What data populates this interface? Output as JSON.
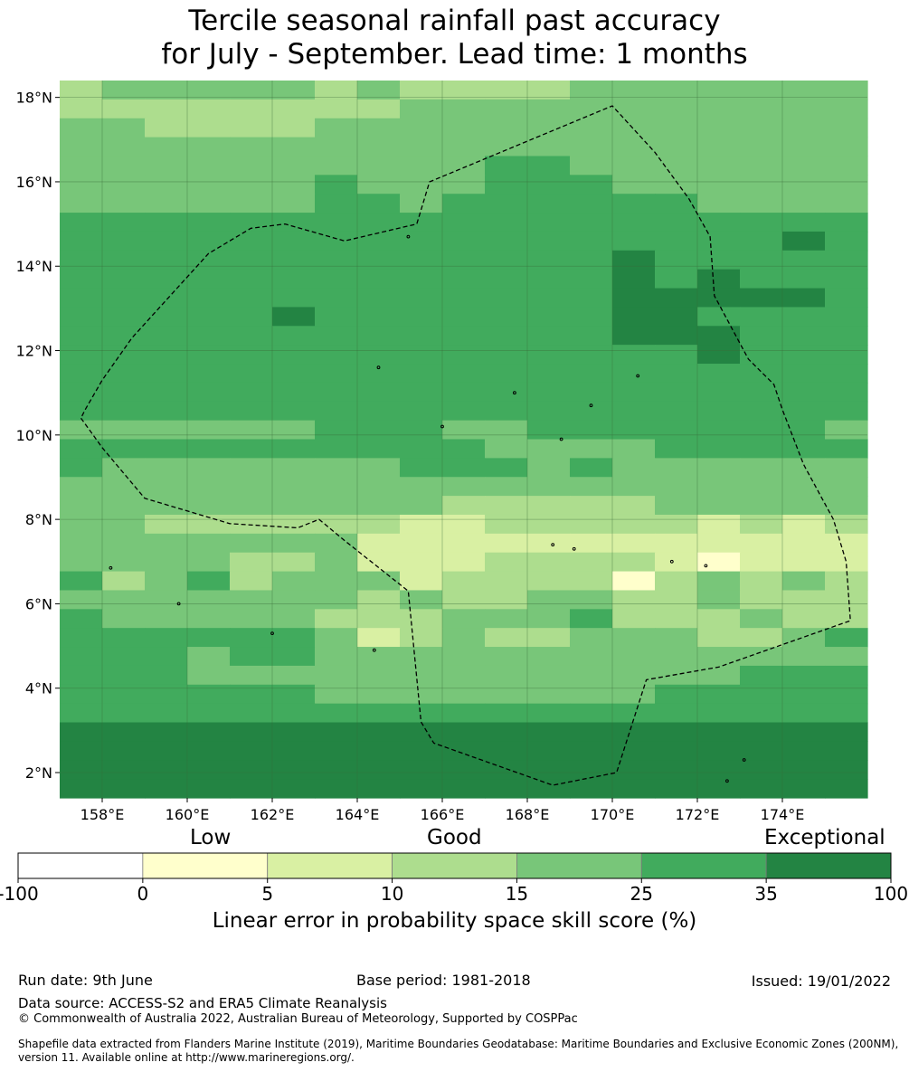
{
  "title_line1": "Tercile seasonal rainfall past accuracy",
  "title_line2": "for July - September. Lead time: 1 months",
  "map": {
    "lon_min": 157.0,
    "lon_max": 176.0,
    "lat_min": 1.4,
    "lat_max": 18.4,
    "lat_ticks": [
      {
        "value": 18,
        "label": "18°N"
      },
      {
        "value": 16,
        "label": "16°N"
      },
      {
        "value": 14,
        "label": "14°N"
      },
      {
        "value": 12,
        "label": "12°N"
      },
      {
        "value": 10,
        "label": "10°N"
      },
      {
        "value": 8,
        "label": "8°N"
      },
      {
        "value": 6,
        "label": "6°N"
      },
      {
        "value": 4,
        "label": "4°N"
      },
      {
        "value": 2,
        "label": "2°N"
      }
    ],
    "lon_ticks": [
      {
        "value": 158,
        "label": "158°E"
      },
      {
        "value": 160,
        "label": "160°E"
      },
      {
        "value": 162,
        "label": "162°E"
      },
      {
        "value": 164,
        "label": "164°E"
      },
      {
        "value": 166,
        "label": "166°E"
      },
      {
        "value": 168,
        "label": "168°E"
      },
      {
        "value": 170,
        "label": "170°E"
      },
      {
        "value": 172,
        "label": "172°E"
      },
      {
        "value": 174,
        "label": "174°E"
      }
    ],
    "grid_lines": true,
    "eez_boundary": [
      [
        157.5,
        10.4
      ],
      [
        158.0,
        9.7
      ],
      [
        159.0,
        8.5
      ],
      [
        161.0,
        7.9
      ],
      [
        162.6,
        7.8
      ],
      [
        163.1,
        8.0
      ],
      [
        163.7,
        7.5
      ],
      [
        165.2,
        6.3
      ],
      [
        165.5,
        3.2
      ],
      [
        165.8,
        2.7
      ],
      [
        168.6,
        1.7
      ],
      [
        170.1,
        2.0
      ],
      [
        170.8,
        4.2
      ],
      [
        172.5,
        4.5
      ],
      [
        175.6,
        5.6
      ],
      [
        175.5,
        7.0
      ],
      [
        175.2,
        8.0
      ],
      [
        174.5,
        9.3
      ],
      [
        174.0,
        10.6
      ],
      [
        173.8,
        11.2
      ],
      [
        173.2,
        11.8
      ],
      [
        172.4,
        13.3
      ],
      [
        172.3,
        14.7
      ],
      [
        171.8,
        15.6
      ],
      [
        171.0,
        16.7
      ],
      [
        170.0,
        17.8
      ],
      [
        165.7,
        16.0
      ],
      [
        165.4,
        15.0
      ],
      [
        163.7,
        14.6
      ],
      [
        162.3,
        15.0
      ],
      [
        161.5,
        14.9
      ],
      [
        160.5,
        14.3
      ],
      [
        159.6,
        13.3
      ],
      [
        158.7,
        12.3
      ],
      [
        158.0,
        11.3
      ],
      [
        157.6,
        10.6
      ]
    ],
    "levels": [
      "#ffffff",
      "#ffffcc",
      "#d9f0a3",
      "#addd8e",
      "#78c679",
      "#41ab5d",
      "#238443"
    ],
    "grid": [
      "3444443433334444444",
      "3333333344444444444",
      "4433334444444444444",
      "4444444444444444444",
      "4444444444554444444",
      "4444445444555444444",
      "4444445545555554444",
      "5555555555555555555",
      "5555555555555555565",
      "5555555555555655555",
      "5555555555555656555",
      "5555555555555666665",
      "5555565555555665555",
      "5555555555555666555",
      "5555555555555556555",
      "5555555555555555555",
      "5555555555555555555",
      "5555555555555555555",
      "4444445554455555554",
      "5555555555444455555",
      "5444444455545444444",
      "4444444444444444444",
      "4444444443333344444",
      "4433333322333332323",
      "4444444222222222222",
      "4444334222333321222",
      "5345344423333134343",
      "4444444343344334333",
      "5444443334445333433",
      "5555554234334443345",
      "5554554444444444444",
      "5554444444444444555",
      "5555554444444455555",
      "5555555555555555555",
      "6666666666666666666",
      "6666666666666666666",
      "6666666666666666666",
      "6666666666666666666"
    ]
  },
  "colorbar": {
    "categories": [
      "Low",
      "Good",
      "Exceptional"
    ],
    "tick_labels": [
      "-100",
      "0",
      "5",
      "10",
      "15",
      "25",
      "35",
      "100"
    ],
    "colors": [
      "#ffffff",
      "#ffffcc",
      "#d9f0a3",
      "#addd8e",
      "#78c679",
      "#41ab5d",
      "#238443"
    ],
    "label": "Linear error in probability space skill score (%)"
  },
  "footer": {
    "run_date": "Run date: 9th June",
    "base_period": "Base period: 1981-2018",
    "issued": "Issued: 19/01/2022",
    "data_source": "Data source: ACCESS-S2 and ERA5 Climate Reanalysis",
    "copyright": "© Commonwealth of Australia 2022, Australian Bureau of Meteorology, Supported by COSPPac",
    "shapefile": "Shapefile data extracted from Flanders Marine Institute (2019), Maritime Boundaries Geodatabase: Maritime Boundaries and Exclusive Economic Zones (200NM), version 11. Available online at http://www.marineregions.org/."
  }
}
